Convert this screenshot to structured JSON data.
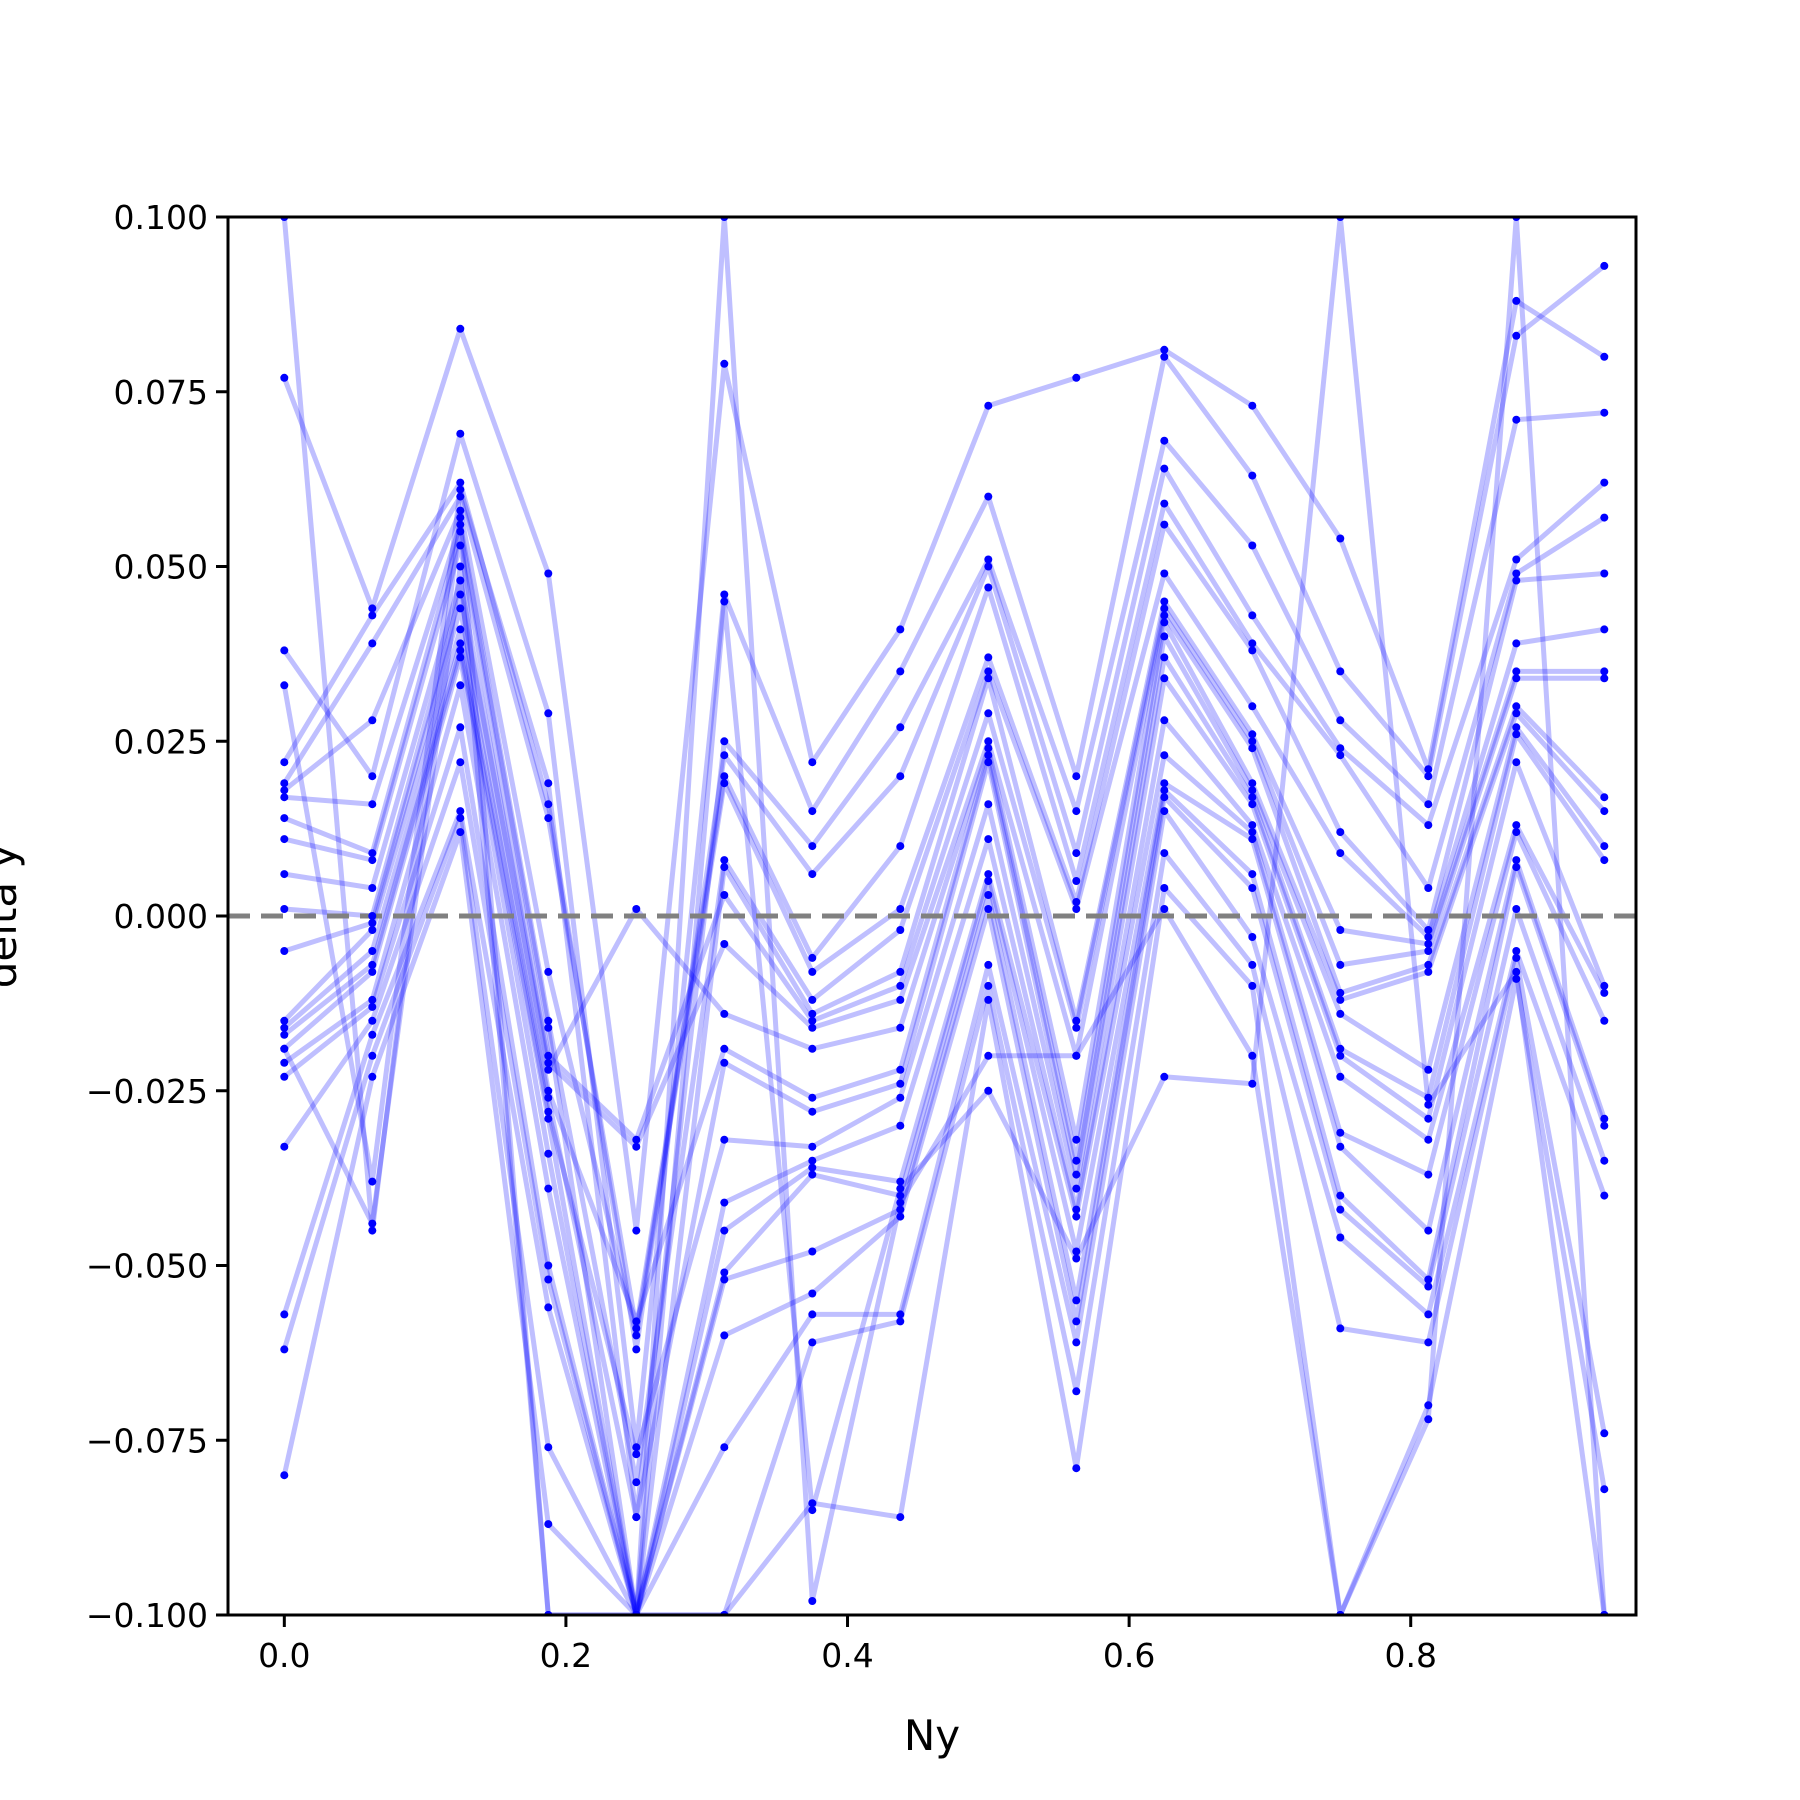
{
  "chart_data": {
    "type": "line",
    "title": "",
    "xlabel": "Ny",
    "ylabel": "delta y",
    "xlim": [
      -0.04,
      0.96
    ],
    "ylim": [
      -0.1,
      0.1
    ],
    "x_ticks": [
      0.0,
      0.2,
      0.4,
      0.6,
      0.8
    ],
    "x_tick_labels": [
      "0.0",
      "0.2",
      "0.4",
      "0.6",
      "0.8"
    ],
    "y_ticks": [
      0.1,
      0.075,
      0.05,
      0.025,
      0.0,
      -0.025,
      -0.05,
      -0.075,
      -0.1
    ],
    "y_tick_labels": [
      "0.100",
      "0.075",
      "0.050",
      "0.025",
      "0.000",
      "−0.025",
      "−0.050",
      "−0.075",
      "−0.100"
    ],
    "grid": false,
    "reference_line": {
      "y": 0.0,
      "style": "dashed",
      "color": "#808080"
    },
    "series_color": "#0000ff",
    "x": [
      0.0,
      0.0625,
      0.125,
      0.1875,
      0.25,
      0.3125,
      0.375,
      0.4375,
      0.5,
      0.5625,
      0.625,
      0.6875,
      0.75,
      0.8125,
      0.875,
      0.9375
    ],
    "series": [
      {
        "values": [
          0.077,
          0.044,
          0.084,
          0.049,
          -0.045,
          0.079,
          0.022,
          0.041,
          0.073,
          0.077,
          0.081,
          0.073,
          0.054,
          0.021,
          0.088,
          0.08
        ]
      },
      {
        "values": [
          0.038,
          0.02,
          0.069,
          0.029,
          -0.076,
          0.046,
          0.015,
          0.035,
          0.06,
          0.02,
          0.08,
          0.063,
          0.035,
          0.02,
          0.083,
          0.093
        ]
      },
      {
        "values": [
          0.033,
          -0.038,
          0.061,
          0.019,
          -0.086,
          0.025,
          0.01,
          0.027,
          0.051,
          0.015,
          0.068,
          0.053,
          0.028,
          0.016,
          0.071,
          0.072
        ]
      },
      {
        "values": [
          0.022,
          0.043,
          0.062,
          0.016,
          -0.062,
          0.023,
          0.006,
          0.02,
          0.05,
          0.009,
          0.064,
          0.043,
          0.024,
          0.013,
          0.051,
          0.062
        ]
      },
      {
        "values": [
          0.019,
          0.039,
          0.06,
          0.014,
          -0.059,
          0.02,
          -0.006,
          0.01,
          0.047,
          0.005,
          0.059,
          0.039,
          0.023,
          0.004,
          0.049,
          0.057
        ]
      },
      {
        "values": [
          0.018,
          0.028,
          0.058,
          -0.008,
          -0.06,
          0.019,
          -0.008,
          0.001,
          0.037,
          0.002,
          0.056,
          0.038,
          0.012,
          -0.002,
          0.048,
          0.049
        ]
      },
      {
        "values": [
          0.017,
          0.016,
          0.056,
          -0.015,
          -0.081,
          0.008,
          -0.012,
          -0.002,
          0.035,
          0.001,
          0.049,
          0.03,
          0.009,
          -0.003,
          0.039,
          0.041
        ]
      },
      {
        "values": [
          0.014,
          0.009,
          0.055,
          -0.016,
          -0.1,
          0.007,
          -0.014,
          -0.008,
          0.034,
          -0.015,
          0.045,
          0.026,
          -0.002,
          -0.004,
          0.035,
          0.035
        ]
      },
      {
        "values": [
          0.011,
          0.008,
          0.053,
          -0.02,
          -0.032,
          0.003,
          -0.015,
          -0.01,
          0.029,
          -0.016,
          0.044,
          0.025,
          -0.007,
          -0.005,
          0.034,
          0.034
        ]
      },
      {
        "values": [
          0.006,
          0.004,
          0.048,
          -0.021,
          -0.033,
          -0.004,
          -0.016,
          -0.012,
          0.025,
          -0.02,
          0.043,
          0.024,
          -0.011,
          -0.007,
          0.03,
          0.017
        ]
      },
      {
        "values": [
          0.001,
          0.0,
          0.046,
          -0.022,
          0.001,
          -0.014,
          -0.019,
          -0.016,
          0.024,
          -0.032,
          0.042,
          0.019,
          -0.012,
          -0.008,
          0.029,
          0.015
        ]
      },
      {
        "values": [
          -0.005,
          -0.001,
          0.044,
          -0.025,
          -0.058,
          -0.019,
          -0.026,
          -0.022,
          0.023,
          -0.035,
          0.04,
          0.018,
          -0.014,
          -0.022,
          0.027,
          0.01
        ]
      },
      {
        "values": [
          -0.015,
          -0.002,
          0.041,
          -0.026,
          -0.086,
          -0.021,
          -0.028,
          -0.024,
          0.022,
          -0.037,
          0.037,
          0.017,
          -0.019,
          -0.026,
          0.026,
          0.008
        ]
      },
      {
        "values": [
          -0.016,
          -0.005,
          0.039,
          -0.028,
          -0.077,
          -0.032,
          -0.033,
          -0.026,
          0.016,
          -0.039,
          0.034,
          0.016,
          -0.02,
          -0.029,
          0.022,
          -0.01
        ]
      },
      {
        "values": [
          -0.017,
          -0.007,
          0.038,
          -0.029,
          -0.1,
          -0.041,
          -0.035,
          -0.03,
          0.011,
          -0.042,
          0.028,
          0.013,
          -0.023,
          -0.032,
          0.013,
          -0.011
        ]
      },
      {
        "values": [
          -0.019,
          -0.008,
          0.037,
          -0.034,
          -0.1,
          -0.045,
          -0.036,
          -0.038,
          0.006,
          -0.043,
          0.023,
          0.012,
          -0.031,
          -0.037,
          0.012,
          -0.015
        ]
      },
      {
        "values": [
          -0.021,
          -0.012,
          0.033,
          -0.039,
          -0.1,
          -0.051,
          -0.037,
          -0.04,
          0.005,
          -0.048,
          0.019,
          0.011,
          -0.033,
          -0.045,
          0.008,
          -0.029
        ]
      },
      {
        "values": [
          -0.023,
          -0.013,
          0.027,
          -0.05,
          -0.1,
          -0.052,
          -0.048,
          -0.042,
          0.003,
          -0.055,
          0.018,
          0.006,
          -0.04,
          -0.052,
          0.007,
          -0.03
        ]
      },
      {
        "values": [
          -0.033,
          -0.015,
          0.022,
          -0.052,
          -0.1,
          -0.06,
          -0.054,
          -0.043,
          0.001,
          -0.058,
          0.017,
          0.004,
          -0.042,
          -0.053,
          0.001,
          -0.035
        ]
      },
      {
        "values": [
          -0.057,
          -0.017,
          0.015,
          -0.056,
          -0.1,
          -0.076,
          -0.057,
          -0.057,
          -0.007,
          -0.061,
          0.015,
          -0.003,
          -0.046,
          -0.057,
          -0.005,
          -0.04
        ]
      },
      {
        "values": [
          -0.062,
          -0.02,
          0.014,
          -0.076,
          -0.1,
          -0.1,
          -0.061,
          -0.058,
          -0.01,
          -0.068,
          0.009,
          -0.007,
          -0.059,
          -0.061,
          -0.006,
          -0.074
        ]
      },
      {
        "values": [
          -0.08,
          -0.023,
          0.012,
          -0.087,
          -0.1,
          -0.1,
          -0.084,
          -0.086,
          -0.012,
          -0.079,
          0.004,
          -0.01,
          -0.1,
          -0.07,
          -0.009,
          -0.082
        ]
      },
      {
        "values": [
          0.1,
          -0.045,
          0.057,
          -0.1,
          -0.1,
          0.1,
          -0.098,
          -0.041,
          -0.02,
          -0.02,
          0.001,
          -0.02,
          -0.1,
          -0.072,
          0.1,
          -0.1
        ]
      },
      {
        "values": [
          -0.019,
          -0.044,
          0.05,
          -0.1,
          -0.1,
          0.045,
          -0.085,
          -0.039,
          -0.025,
          -0.049,
          -0.023,
          -0.024,
          0.1,
          -0.027,
          -0.008,
          -0.1
        ]
      }
    ]
  }
}
